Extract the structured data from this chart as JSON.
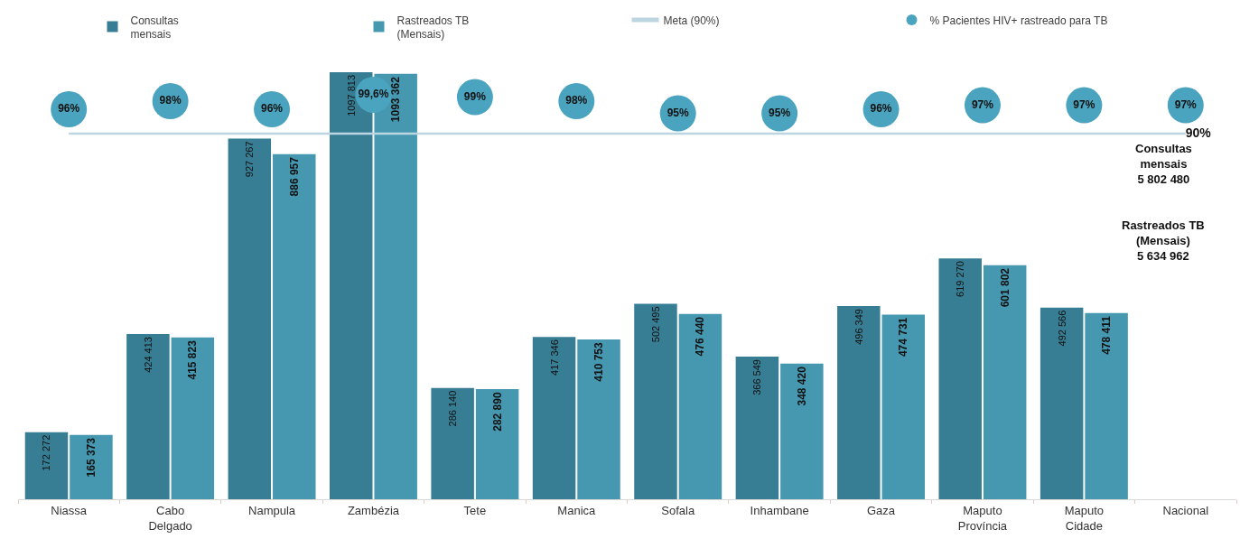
{
  "chart_data": {
    "type": "bar",
    "categories": [
      "Niassa",
      "Cabo Delgado",
      "Nampula",
      "Zambézia",
      "Tete",
      "Manica",
      "Sofala",
      "Inhambane",
      "Gaza",
      "Maputo Província",
      "Maputo Cidade",
      "Nacional"
    ],
    "series": [
      {
        "name": "Consultas\nmensais",
        "color": "#377e94",
        "values": [
          172272,
          424413,
          927267,
          1097813,
          286140,
          417346,
          502495,
          366549,
          496349,
          619270,
          492566,
          null
        ],
        "value_labels": [
          "172 272",
          "424 413",
          "927 267",
          "1097 813",
          "286 140",
          "417 346",
          "502 495",
          "366 549",
          "496 349",
          "619 270",
          "492 566",
          null
        ]
      },
      {
        "name": "Rastreados TB\n(Mensais)",
        "color": "#4698b1",
        "values": [
          165373,
          415823,
          886957,
          1093362,
          282890,
          410753,
          476440,
          348420,
          474731,
          601802,
          478411,
          null
        ],
        "value_labels": [
          "165 373",
          "415 823",
          "886 957",
          "1093 362",
          "282 890",
          "410 753",
          "476 440",
          "348 420",
          "474 731",
          "601 802",
          "478 411",
          null
        ]
      },
      {
        "name": "Meta (90%)",
        "type": "line",
        "axis": "y2",
        "color": "#bdd5e0",
        "values": [
          90,
          90,
          90,
          90,
          90,
          90,
          90,
          90,
          90,
          90,
          90,
          90
        ],
        "value_labels": [
          null,
          null,
          null,
          null,
          null,
          null,
          null,
          null,
          null,
          null,
          null,
          "90%"
        ]
      },
      {
        "name": "% Pacientes HIV+ rastreado para TB",
        "type": "scatter",
        "axis": "y2",
        "marker": "circle",
        "color": "#4ba4bf",
        "values": [
          96,
          98,
          96,
          99.6,
          99,
          98,
          95,
          95,
          96,
          97,
          97,
          97
        ],
        "value_labels": [
          "96%",
          "98%",
          "96%",
          "99,6%",
          "99%",
          "98%",
          "95%",
          "95%",
          "96%",
          "97%",
          "97%",
          "97%"
        ]
      }
    ],
    "tick_labels": "x",
    "legend": "top",
    "annotations": [
      "Consultas\nmensais\n5 802 480",
      "Rastreados TB\n(Mensais)\n5 634 962"
    ]
  }
}
